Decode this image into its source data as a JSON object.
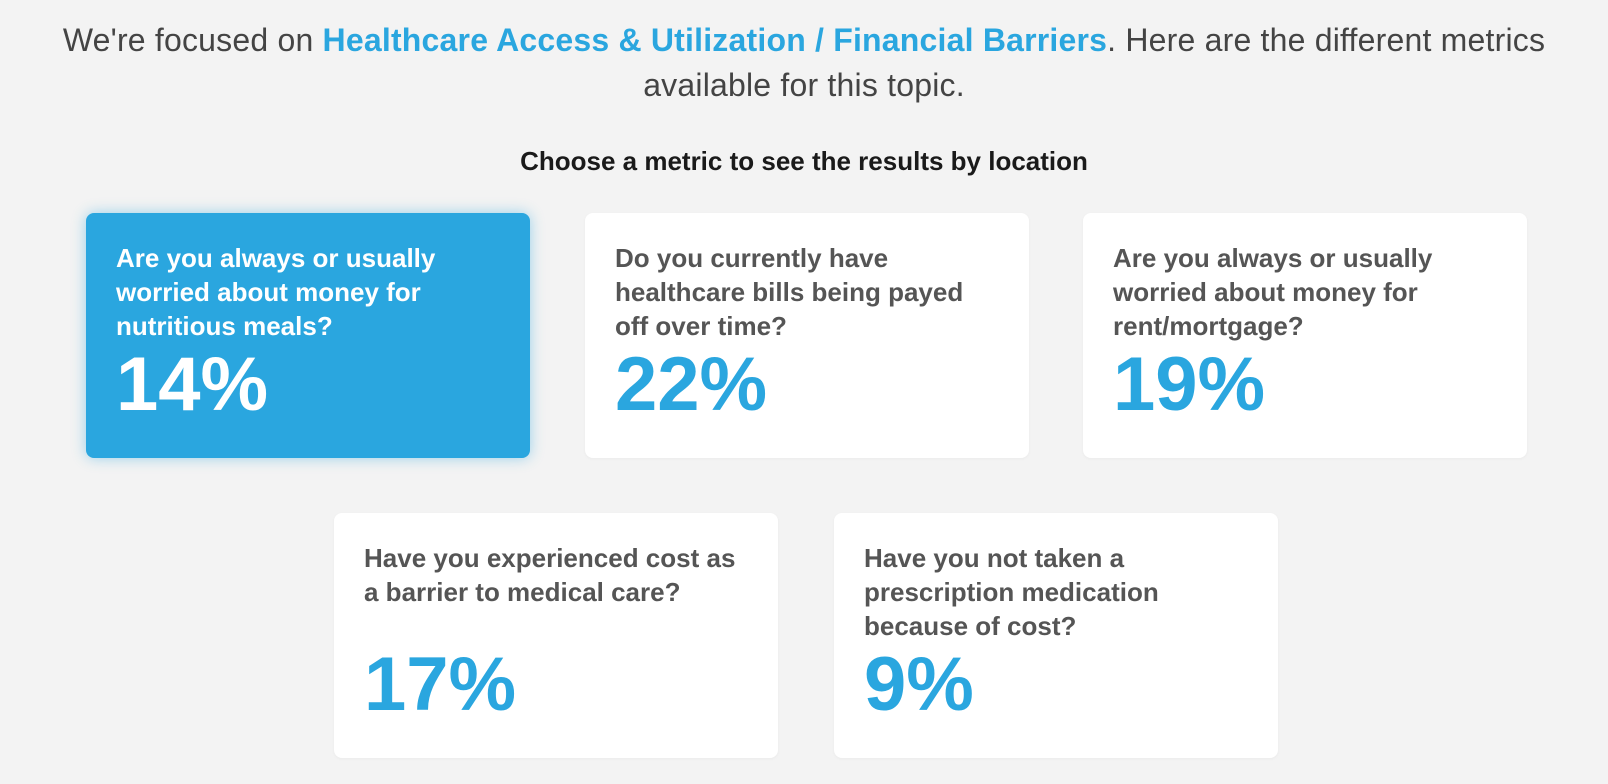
{
  "intro": {
    "prefix": "We're focused on ",
    "topic": "Healthcare Access & Utilization / Financial Barriers",
    "suffix": ". Here are the different metrics available for this topic."
  },
  "subheading": "Choose a metric to see the results by location",
  "metrics": [
    {
      "question": "Are you always or usually worried about money for nutritious meals?",
      "value": "14%",
      "selected": true
    },
    {
      "question": "Do you currently have healthcare bills being payed off over time?",
      "value": "22%",
      "selected": false
    },
    {
      "question": "Are you always or usually worried about money for rent/mortgage?",
      "value": "19%",
      "selected": false
    },
    {
      "question": "Have you experienced cost as a barrier to medical care?",
      "value": "17%",
      "selected": false
    },
    {
      "question": "Have you not taken a prescription medication because of cost?",
      "value": "9%",
      "selected": false
    }
  ],
  "colors": {
    "accent": "#2aa6df",
    "background": "#f3f3f3",
    "card": "#ffffff",
    "question_text": "#555555"
  }
}
